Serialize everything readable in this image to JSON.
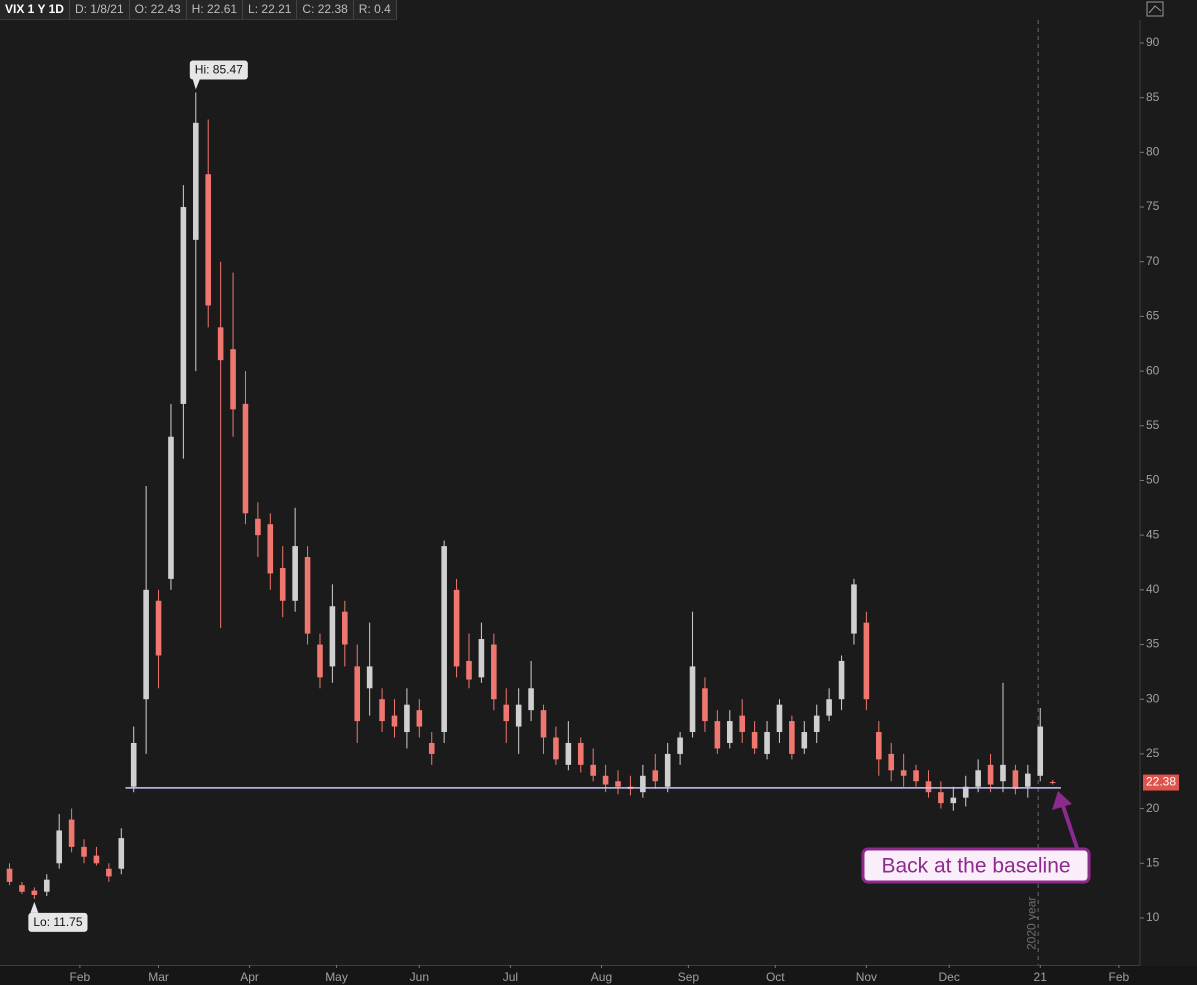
{
  "header": {
    "items": [
      "VIX 1 Y 1D",
      "D: 1/8/21",
      "O: 22.43",
      "H: 22.61",
      "L: 22.21",
      "C: 22.38",
      "R: 0.4"
    ]
  },
  "chart_data": {
    "type": "candlestick",
    "x": [
      0,
      3,
      6,
      9,
      12,
      15,
      18,
      21,
      24,
      27,
      30,
      33,
      36,
      39,
      42,
      45,
      48,
      51,
      54,
      57,
      60,
      63,
      66,
      69,
      72,
      75,
      78,
      81,
      84,
      87,
      90,
      93,
      96,
      99,
      102,
      105,
      108,
      111,
      114,
      117,
      120,
      123,
      126,
      129,
      132,
      135,
      138,
      141,
      144,
      147,
      150,
      153,
      156,
      159,
      162,
      165,
      168,
      171,
      174,
      177,
      180,
      183,
      186,
      189,
      192,
      195,
      198,
      201,
      204,
      207,
      210,
      213,
      216,
      219,
      222,
      225,
      228,
      231,
      234,
      237,
      240,
      243,
      246,
      249,
      252
    ],
    "open": [
      14.5,
      13,
      12.5,
      12.4,
      15,
      19,
      16.5,
      15.7,
      14.5,
      14.5,
      22,
      30,
      39,
      41,
      57,
      72,
      78,
      64,
      62,
      57,
      46.5,
      46,
      42,
      39,
      43,
      35,
      33,
      38,
      33,
      31,
      30,
      28.5,
      27,
      29,
      26,
      27,
      40,
      33.5,
      32,
      35,
      29.5,
      27.5,
      29,
      29,
      26.5,
      24,
      26,
      24,
      23,
      22.5,
      22,
      21.5,
      23.5,
      22,
      25,
      27,
      31,
      28,
      26,
      28.5,
      27,
      25,
      27,
      28,
      25.5,
      27,
      28.5,
      30,
      36,
      37,
      27,
      25,
      23.5,
      23.5,
      22.5,
      21.5,
      20.5,
      21,
      22,
      24,
      22.5,
      23.5,
      22,
      23,
      22.43
    ],
    "high": [
      15,
      13.3,
      12.8,
      14,
      19.5,
      20,
      17.2,
      16.5,
      15,
      18.2,
      27.5,
      49.5,
      40,
      57,
      77,
      85.47,
      83,
      70,
      69,
      60,
      48,
      47,
      44,
      47.5,
      44,
      36,
      40.5,
      39,
      35,
      37,
      31,
      30,
      31,
      30,
      27,
      44.5,
      41,
      36,
      37,
      36,
      31,
      31,
      33.5,
      29.5,
      27.5,
      28,
      26.5,
      25.5,
      24,
      23.5,
      23,
      24,
      25,
      26,
      27,
      38,
      32,
      29,
      29,
      30,
      28,
      28,
      30,
      28.5,
      28,
      29.5,
      31,
      34,
      41,
      38,
      28,
      26,
      25,
      24,
      23.5,
      22.5,
      22,
      23,
      24.5,
      25,
      31.5,
      24,
      24,
      29.2,
      22.61
    ],
    "low": [
      13,
      12.2,
      11.75,
      12,
      14.5,
      16,
      15,
      14.8,
      13.3,
      14,
      21.5,
      25,
      31,
      40,
      52,
      60,
      64,
      36.5,
      54,
      46,
      43,
      40,
      37.5,
      38,
      35,
      31,
      31.5,
      33,
      26,
      28.5,
      27,
      26.5,
      25.5,
      26.5,
      24,
      26,
      32,
      31,
      31.5,
      29,
      26,
      25,
      28,
      25,
      24,
      23.5,
      23.3,
      22.5,
      21.5,
      21.3,
      21.2,
      21,
      21.8,
      21.5,
      24,
      26.5,
      27,
      25,
      25.5,
      26,
      25,
      24.5,
      26,
      24.5,
      25,
      26,
      28,
      29,
      35,
      29,
      23,
      22.5,
      22,
      22,
      21,
      20,
      19.8,
      20.2,
      21.5,
      21.5,
      21.5,
      21.3,
      21,
      22.5,
      22.21
    ],
    "close": [
      13.3,
      12.4,
      12.1,
      13.5,
      18,
      16.5,
      15.6,
      15,
      13.8,
      17.3,
      26,
      40,
      34,
      54,
      75,
      82.7,
      66,
      61,
      56.5,
      47,
      45,
      41.5,
      39,
      44,
      36,
      32,
      38.5,
      35,
      28,
      33,
      28,
      27.5,
      29.5,
      27.5,
      25,
      44,
      33,
      31.8,
      35.5,
      30,
      28,
      29.5,
      31,
      26.5,
      24.5,
      26,
      24,
      23,
      22.2,
      22,
      21.8,
      23,
      22.5,
      25,
      26.5,
      33,
      28,
      25.5,
      28,
      27,
      25.5,
      27,
      29.5,
      25,
      27,
      28.5,
      30,
      33.5,
      40.5,
      30,
      24.5,
      23.5,
      23,
      22.5,
      21.5,
      20.5,
      21,
      22,
      23.5,
      22.2,
      24,
      21.8,
      23.2,
      27.5,
      22.38
    ],
    "up_color": "#d0d0d0",
    "down_color": "#ef7770",
    "xlim": [
      -2.3,
      273.1
    ],
    "xticks": [
      {
        "value": 17,
        "label": "Feb"
      },
      {
        "value": 36,
        "label": "Mar"
      },
      {
        "value": 58,
        "label": "Apr"
      },
      {
        "value": 79,
        "label": "May"
      },
      {
        "value": 99,
        "label": "Jun"
      },
      {
        "value": 121,
        "label": "Jul"
      },
      {
        "value": 143,
        "label": "Aug"
      },
      {
        "value": 164,
        "label": "Sep"
      },
      {
        "value": 185,
        "label": "Oct"
      },
      {
        "value": 207,
        "label": "Nov"
      },
      {
        "value": 227,
        "label": "Dec"
      },
      {
        "value": 249,
        "label": "21"
      },
      {
        "value": 268,
        "label": "Feb"
      }
    ],
    "ylim": [
      5.7,
      92.1
    ],
    "yticks": [
      10,
      15,
      20,
      25,
      30,
      35,
      40,
      45,
      50,
      55,
      60,
      65,
      70,
      75,
      80,
      85,
      90
    ],
    "high_label": {
      "text": "Hi: 85.47",
      "value": 85.47,
      "x": 45
    },
    "low_label": {
      "text": "Lo: 11.75",
      "value": 11.75,
      "x": 6
    },
    "baseline": {
      "value": 21.9,
      "x": [
        28,
        254
      ],
      "color": "#c9c6ff"
    },
    "last_price": {
      "value": 22.38,
      "label": "22.38",
      "color": "#e0524c"
    },
    "year_separator": {
      "x": 248.5,
      "label": "2020 year"
    },
    "callout": "Back at the baseline"
  }
}
